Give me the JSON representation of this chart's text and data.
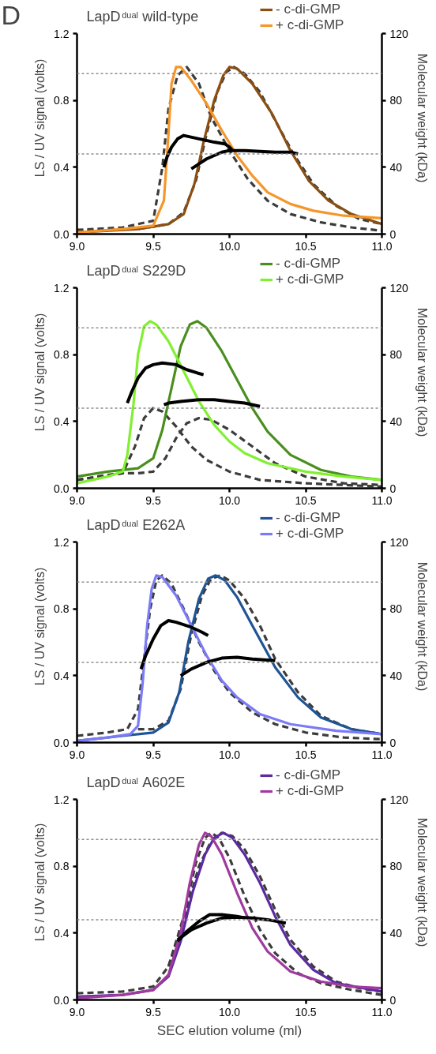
{
  "chart_data": [
    {
      "type": "line",
      "title": "LapD$^{dual}$ wild-type",
      "annotations": [
        "D"
      ],
      "ylabel": "LS / UV signal (volts)",
      "y2label": "Molecular weight (kDa)",
      "xlim": [
        9.0,
        11.0
      ],
      "xticks": [
        {
          "value": 9,
          "label": "9.0"
        },
        {
          "value": 9.5,
          "label": "9.5"
        },
        {
          "value": 10,
          "label": "10.0"
        },
        {
          "value": 10.5,
          "label": "10.5"
        },
        {
          "value": 11,
          "label": "11.0"
        }
      ],
      "ylim": [
        0,
        1.2
      ],
      "yticks": [
        {
          "value": 0,
          "label": "0.0"
        },
        {
          "value": 0.4,
          "label": "0.4"
        },
        {
          "value": 0.8,
          "label": "0.8"
        },
        {
          "value": 1.2,
          "label": "1.2"
        }
      ],
      "y2lim": [
        0,
        120
      ],
      "y2ticks": [
        0,
        40,
        80,
        120
      ],
      "grid": false,
      "legend": "top right",
      "ref_lines": [
        {
          "axis": "y2",
          "value": 96,
          "color": "#8c8c8c",
          "line_style": "dotted"
        },
        {
          "axis": "y2",
          "value": 48,
          "color": "#8c8c8c",
          "line_style": "dotted"
        }
      ],
      "series": [
        {
          "color": "#3c3c3c",
          "line_style": "dashed",
          "x": [
            9.0,
            9.3,
            9.5,
            9.56,
            9.6,
            9.66,
            9.72,
            9.8,
            9.88,
            10.0,
            10.12,
            10.25,
            10.4,
            10.6,
            10.8,
            11.0
          ],
          "values": [
            0.025,
            0.04,
            0.08,
            0.4,
            0.75,
            0.95,
            1.0,
            0.9,
            0.7,
            0.5,
            0.33,
            0.2,
            0.12,
            0.07,
            0.04,
            0.02
          ]
        },
        {
          "color": "#3c3c3c",
          "line_style": "dashed",
          "x": [
            9.0,
            9.4,
            9.6,
            9.7,
            9.78,
            9.85,
            9.92,
            9.98,
            10.03,
            10.1,
            10.2,
            10.3,
            10.42,
            10.55,
            10.7,
            10.85,
            11.0
          ],
          "values": [
            0.02,
            0.03,
            0.06,
            0.13,
            0.32,
            0.6,
            0.85,
            0.97,
            1.0,
            0.96,
            0.85,
            0.68,
            0.48,
            0.3,
            0.17,
            0.09,
            0.06
          ]
        },
        {
          "name": "- c-di-GMP",
          "color": "#8b4f12",
          "line_style": "solid",
          "x": [
            9.0,
            9.4,
            9.6,
            9.7,
            9.77,
            9.83,
            9.9,
            9.96,
            10.0,
            10.05,
            10.15,
            10.28,
            10.4,
            10.52,
            10.65,
            10.8,
            11.0
          ],
          "values": [
            0.01,
            0.03,
            0.06,
            0.12,
            0.3,
            0.55,
            0.8,
            0.95,
            1.0,
            0.99,
            0.9,
            0.72,
            0.5,
            0.32,
            0.2,
            0.12,
            0.06
          ]
        },
        {
          "name": "+ c-di-GMP",
          "color": "#f5962a",
          "line_style": "solid",
          "x": [
            9.0,
            9.3,
            9.5,
            9.57,
            9.6,
            9.62,
            9.65,
            9.68,
            9.75,
            9.85,
            9.95,
            10.05,
            10.15,
            10.25,
            10.4,
            10.55,
            10.75,
            11.0
          ],
          "values": [
            0.01,
            0.03,
            0.05,
            0.2,
            0.6,
            0.9,
            1.0,
            1.0,
            0.92,
            0.78,
            0.62,
            0.47,
            0.35,
            0.25,
            0.18,
            0.14,
            0.11,
            0.095
          ]
        },
        {
          "axis": "y2",
          "color": "#000000",
          "line_style": "solid",
          "x": [
            9.57,
            9.59,
            9.62,
            9.66,
            9.7,
            9.8,
            9.9,
            9.97,
            10.0,
            10.02
          ],
          "values": [
            40,
            46,
            52,
            57,
            59,
            57,
            55,
            54,
            52,
            50
          ]
        },
        {
          "axis": "y2",
          "color": "#000000",
          "line_style": "solid",
          "x": [
            9.75,
            9.8,
            9.85,
            9.9,
            9.95,
            10.0,
            10.1,
            10.2,
            10.3,
            10.4,
            10.45
          ],
          "values": [
            39,
            42,
            45,
            47,
            49,
            50,
            50,
            49.5,
            49,
            49,
            48
          ]
        }
      ]
    },
    {
      "type": "line",
      "title": "LapD$^{dual}$ S229D",
      "ylabel": "LS / UV signal (volts)",
      "y2label": "Molecular weight (kDa)",
      "xlim": [
        9.0,
        11.0
      ],
      "xticks": [
        {
          "value": 9,
          "label": "9.0"
        },
        {
          "value": 9.5,
          "label": "9.5"
        },
        {
          "value": 10,
          "label": "10.0"
        },
        {
          "value": 10.5,
          "label": "10.5"
        },
        {
          "value": 11,
          "label": "11.0"
        }
      ],
      "ylim": [
        0,
        1.2
      ],
      "yticks": [
        {
          "value": 0,
          "label": "0.0"
        },
        {
          "value": 0.4,
          "label": "0.4"
        },
        {
          "value": 0.8,
          "label": "0.8"
        },
        {
          "value": 1.2,
          "label": "1.2"
        }
      ],
      "y2lim": [
        0,
        120
      ],
      "y2ticks": [
        0,
        40,
        80,
        120
      ],
      "grid": false,
      "legend": "top right",
      "ref_lines": [
        {
          "axis": "y2",
          "value": 96,
          "color": "#8c8c8c",
          "line_style": "dotted"
        },
        {
          "axis": "y2",
          "value": 48,
          "color": "#8c8c8c",
          "line_style": "dotted"
        }
      ],
      "series": [
        {
          "color": "#3c3c3c",
          "line_style": "dashed",
          "x": [
            9.0,
            9.2,
            9.3,
            9.38,
            9.44,
            9.5,
            9.56,
            9.65,
            9.75,
            9.85,
            10.0,
            10.2,
            10.5,
            11.0
          ],
          "values": [
            0.05,
            0.08,
            0.09,
            0.25,
            0.42,
            0.48,
            0.46,
            0.37,
            0.25,
            0.17,
            0.1,
            0.05,
            0.03,
            0.01
          ]
        },
        {
          "color": "#3c3c3c",
          "line_style": "dashed",
          "x": [
            9.0,
            9.3,
            9.4,
            9.5,
            9.58,
            9.65,
            9.72,
            9.8,
            9.88,
            10.0,
            10.15,
            10.3,
            10.5,
            10.75,
            11.0
          ],
          "values": [
            0.05,
            0.09,
            0.09,
            0.1,
            0.18,
            0.3,
            0.39,
            0.42,
            0.41,
            0.35,
            0.25,
            0.15,
            0.07,
            0.03,
            0.02
          ]
        },
        {
          "name": "- c-di-GMP",
          "color": "#4a8f1e",
          "line_style": "solid",
          "x": [
            9.0,
            9.2,
            9.4,
            9.5,
            9.56,
            9.62,
            9.68,
            9.74,
            9.79,
            9.85,
            9.95,
            10.05,
            10.15,
            10.25,
            10.4,
            10.6,
            10.8,
            11.0
          ],
          "values": [
            0.07,
            0.1,
            0.12,
            0.18,
            0.35,
            0.6,
            0.85,
            0.98,
            1.0,
            0.96,
            0.82,
            0.65,
            0.48,
            0.34,
            0.2,
            0.11,
            0.07,
            0.05
          ]
        },
        {
          "name": "+ c-di-GMP",
          "color": "#80f030",
          "line_style": "solid",
          "x": [
            9.0,
            9.2,
            9.3,
            9.33,
            9.37,
            9.4,
            9.44,
            9.48,
            9.52,
            9.6,
            9.7,
            9.8,
            9.9,
            10.0,
            10.1,
            10.25,
            10.5,
            10.75,
            11.0
          ],
          "values": [
            0.03,
            0.07,
            0.1,
            0.2,
            0.5,
            0.8,
            0.97,
            1.0,
            0.98,
            0.88,
            0.7,
            0.52,
            0.38,
            0.28,
            0.21,
            0.15,
            0.1,
            0.07,
            0.05
          ]
        },
        {
          "axis": "y2",
          "color": "#000000",
          "line_style": "solid",
          "x": [
            9.33,
            9.36,
            9.4,
            9.45,
            9.5,
            9.56,
            9.65,
            9.72,
            9.79,
            9.83
          ],
          "values": [
            51,
            58,
            66,
            72,
            74,
            75,
            74,
            71,
            69,
            68
          ]
        },
        {
          "axis": "y2",
          "color": "#000000",
          "line_style": "solid",
          "x": [
            9.57,
            9.6,
            9.68,
            9.8,
            9.9,
            10.0,
            10.1,
            10.2
          ],
          "values": [
            50,
            51,
            52,
            53,
            53,
            52,
            51,
            49
          ]
        }
      ]
    },
    {
      "type": "line",
      "title": "LapD$^{dual}$ E262A",
      "ylabel": "LS / UV signal (volts)",
      "y2label": "Molecular weight (kDa)",
      "xlim": [
        9.0,
        11.0
      ],
      "xticks": [
        {
          "value": 9,
          "label": "9.0"
        },
        {
          "value": 9.5,
          "label": "9.5"
        },
        {
          "value": 10,
          "label": "10.0"
        },
        {
          "value": 10.5,
          "label": "10.5"
        },
        {
          "value": 11,
          "label": "11.0"
        }
      ],
      "ylim": [
        0,
        1.2
      ],
      "yticks": [
        {
          "value": 0,
          "label": "0.0"
        },
        {
          "value": 0.4,
          "label": "0.4"
        },
        {
          "value": 0.8,
          "label": "0.8"
        },
        {
          "value": 1.2,
          "label": "1.2"
        }
      ],
      "y2lim": [
        0,
        120
      ],
      "y2ticks": [
        0,
        40,
        80,
        120
      ],
      "grid": false,
      "legend": "top right",
      "ref_lines": [
        {
          "axis": "y2",
          "value": 96,
          "color": "#8c8c8c",
          "line_style": "dotted"
        },
        {
          "axis": "y2",
          "value": 48,
          "color": "#8c8c8c",
          "line_style": "dotted"
        }
      ],
      "series": [
        {
          "color": "#3c3c3c",
          "line_style": "dashed",
          "x": [
            9.0,
            9.2,
            9.33,
            9.4,
            9.44,
            9.48,
            9.52,
            9.56,
            9.62,
            9.7,
            9.8,
            9.9,
            10.0,
            10.15,
            10.3,
            10.5,
            10.75,
            11.0
          ],
          "values": [
            0.04,
            0.06,
            0.08,
            0.2,
            0.5,
            0.8,
            0.97,
            1.0,
            0.95,
            0.8,
            0.6,
            0.43,
            0.3,
            0.18,
            0.11,
            0.06,
            0.03,
            0.02
          ]
        },
        {
          "color": "#3c3c3c",
          "line_style": "dashed",
          "x": [
            9.4,
            9.5,
            9.6,
            9.68,
            9.75,
            9.82,
            9.88,
            9.94,
            10.0,
            10.1,
            10.2,
            10.3,
            10.45,
            10.6,
            10.8,
            11.0
          ],
          "values": [
            0.08,
            0.08,
            0.13,
            0.32,
            0.65,
            0.88,
            0.98,
            1.0,
            0.97,
            0.86,
            0.7,
            0.5,
            0.3,
            0.16,
            0.08,
            0.05
          ]
        },
        {
          "name": "- c-di-GMP",
          "color": "#1f5496",
          "line_style": "solid",
          "x": [
            9.0,
            9.3,
            9.5,
            9.6,
            9.67,
            9.73,
            9.8,
            9.86,
            9.91,
            9.97,
            10.05,
            10.15,
            10.3,
            10.45,
            10.6,
            10.8,
            11.0
          ],
          "values": [
            0.01,
            0.04,
            0.06,
            0.12,
            0.3,
            0.6,
            0.86,
            0.98,
            1.0,
            0.97,
            0.87,
            0.7,
            0.45,
            0.27,
            0.15,
            0.08,
            0.05
          ]
        },
        {
          "name": "+ c-di-GMP",
          "color": "#7b7bf7",
          "line_style": "solid",
          "x": [
            9.0,
            9.2,
            9.35,
            9.4,
            9.43,
            9.46,
            9.49,
            9.52,
            9.56,
            9.65,
            9.75,
            9.85,
            9.95,
            10.05,
            10.2,
            10.4,
            10.7,
            11.0
          ],
          "values": [
            0.01,
            0.03,
            0.05,
            0.1,
            0.35,
            0.7,
            0.92,
            1.0,
            0.99,
            0.88,
            0.7,
            0.52,
            0.37,
            0.27,
            0.17,
            0.11,
            0.07,
            0.05
          ]
        },
        {
          "axis": "y2",
          "color": "#000000",
          "line_style": "solid",
          "x": [
            9.42,
            9.45,
            9.5,
            9.55,
            9.6,
            9.65,
            9.75,
            9.82,
            9.86
          ],
          "values": [
            44,
            52,
            62,
            70,
            73,
            72,
            69,
            66,
            64
          ]
        },
        {
          "axis": "y2",
          "color": "#000000",
          "line_style": "solid",
          "x": [
            9.68,
            9.75,
            9.85,
            9.95,
            10.05,
            10.15,
            10.3
          ],
          "values": [
            40,
            44,
            48,
            50.5,
            51,
            50,
            49
          ]
        }
      ]
    },
    {
      "type": "line",
      "title": "LapD$^{dual}$ A602E",
      "xlabel": "SEC elution volume (ml)",
      "ylabel": "LS / UV signal (volts)",
      "y2label": "Molecular weight (kDa)",
      "xlim": [
        9.0,
        11.0
      ],
      "xticks": [
        {
          "value": 9,
          "label": "9.0"
        },
        {
          "value": 9.5,
          "label": "9.5"
        },
        {
          "value": 10,
          "label": "10.0"
        },
        {
          "value": 10.5,
          "label": "10.5"
        },
        {
          "value": 11,
          "label": "11.0"
        }
      ],
      "ylim": [
        0,
        1.2
      ],
      "yticks": [
        {
          "value": 0,
          "label": "0.0"
        },
        {
          "value": 0.4,
          "label": "0.4"
        },
        {
          "value": 0.8,
          "label": "0.8"
        },
        {
          "value": 1.2,
          "label": "1.2"
        }
      ],
      "y2lim": [
        0,
        120
      ],
      "y2ticks": [
        0,
        40,
        80,
        120
      ],
      "grid": false,
      "legend": "top right",
      "ref_lines": [
        {
          "axis": "y2",
          "value": 96,
          "color": "#8c8c8c",
          "line_style": "dotted"
        },
        {
          "axis": "y2",
          "value": 48,
          "color": "#8c8c8c",
          "line_style": "dotted"
        }
      ],
      "series": [
        {
          "color": "#3c3c3c",
          "line_style": "dashed",
          "x": [
            9.0,
            9.3,
            9.5,
            9.6,
            9.7,
            9.78,
            9.84,
            9.88,
            9.93,
            10.0,
            10.1,
            10.2,
            10.3,
            10.45,
            10.6,
            10.8,
            11.0
          ],
          "values": [
            0.04,
            0.05,
            0.08,
            0.2,
            0.5,
            0.82,
            0.97,
            1.0,
            0.97,
            0.85,
            0.62,
            0.42,
            0.28,
            0.16,
            0.1,
            0.06,
            0.03
          ]
        },
        {
          "color": "#3c3c3c",
          "line_style": "dashed",
          "x": [
            9.6,
            9.7,
            9.8,
            9.88,
            9.95,
            10.02,
            10.1,
            10.2,
            10.3,
            10.4,
            10.55,
            10.7,
            10.85,
            11.0
          ],
          "values": [
            0.2,
            0.48,
            0.8,
            0.95,
            1.0,
            0.98,
            0.9,
            0.74,
            0.54,
            0.36,
            0.2,
            0.11,
            0.07,
            0.05
          ]
        },
        {
          "name": "- c-di-GMP",
          "color": "#5b2aa0",
          "line_style": "solid",
          "x": [
            9.0,
            9.3,
            9.5,
            9.6,
            9.68,
            9.76,
            9.84,
            9.9,
            9.96,
            10.02,
            10.1,
            10.2,
            10.3,
            10.4,
            10.55,
            10.7,
            11.0
          ],
          "values": [
            0.02,
            0.03,
            0.06,
            0.14,
            0.35,
            0.65,
            0.87,
            0.97,
            1.0,
            0.97,
            0.87,
            0.7,
            0.5,
            0.33,
            0.18,
            0.1,
            0.05
          ]
        },
        {
          "name": "+ c-di-GMP",
          "color": "#a03a9f",
          "line_style": "solid",
          "x": [
            9.0,
            9.3,
            9.5,
            9.6,
            9.68,
            9.74,
            9.8,
            9.84,
            9.88,
            9.95,
            10.05,
            10.15,
            10.25,
            10.4,
            10.6,
            10.8,
            11.0
          ],
          "values": [
            0.01,
            0.03,
            0.06,
            0.15,
            0.4,
            0.7,
            0.93,
            1.0,
            0.98,
            0.87,
            0.64,
            0.43,
            0.29,
            0.17,
            0.11,
            0.08,
            0.07
          ]
        },
        {
          "axis": "y2",
          "color": "#000000",
          "line_style": "solid",
          "x": [
            9.66,
            9.72,
            9.8,
            9.87,
            9.95,
            10.05,
            10.1
          ],
          "values": [
            35,
            41,
            47,
            51,
            51,
            50,
            49
          ]
        },
        {
          "axis": "y2",
          "color": "#000000",
          "line_style": "solid",
          "x": [
            9.66,
            9.75,
            9.85,
            9.95,
            10.05,
            10.15,
            10.25,
            10.37
          ],
          "values": [
            36,
            42,
            46,
            49,
            49.5,
            49,
            48,
            46
          ]
        }
      ]
    }
  ]
}
